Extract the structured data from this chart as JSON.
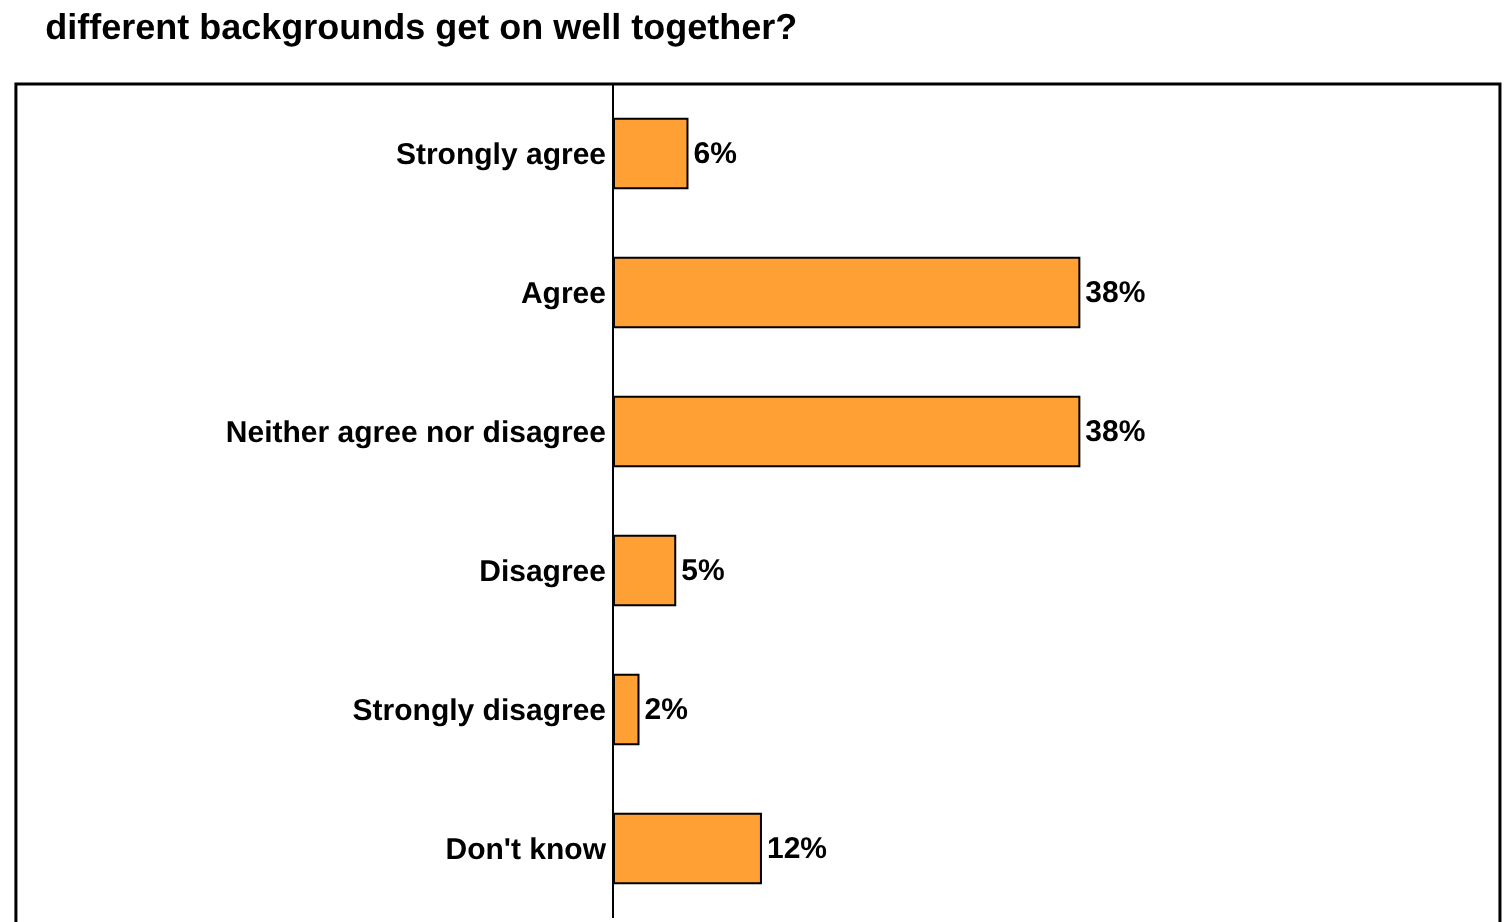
{
  "chart_data": {
    "type": "bar",
    "orientation": "horizontal",
    "title": "different backgrounds get on well together?",
    "categories": [
      "Strongly agree",
      "Agree",
      "Neither agree nor disagree",
      "Disagree",
      "Strongly disagree",
      "Don't know"
    ],
    "values": [
      6,
      38,
      38,
      5,
      2,
      12
    ],
    "value_labels": [
      "6%",
      "38%",
      "38%",
      "5%",
      "2%",
      "12%"
    ],
    "color": "#ffa035",
    "xlim": [
      0,
      73
    ]
  }
}
